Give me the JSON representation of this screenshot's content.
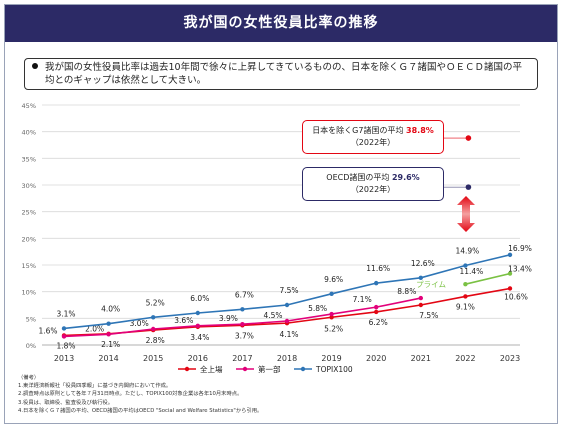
{
  "header": {
    "title": "我が国の女性役員比率の推移"
  },
  "summary": {
    "text": "我が国の女性役員比率は過去10年間で徐々に上昇してきているものの、日本を除くＧ７諸国やＯＥＣＤ諸国の平均とのギャップは依然として大きい。"
  },
  "callouts": {
    "g7_label": "日本を除くG7諸国の平均",
    "g7_value": "38.8%",
    "g7_year": "（2022年）",
    "oecd_label": "OECD諸国の平均",
    "oecd_value": "29.6%",
    "oecd_year": "（2022年）"
  },
  "colors": {
    "header_bg": "#2c2a66",
    "zenjojo": "#e30613",
    "daiichibu": "#e2007a",
    "topix100": "#2e75b6",
    "prime": "#7ac143",
    "g7": "#e30613",
    "oecd": "#2c2a66"
  },
  "notes": [
    "（備考）",
    "1.東洋経済新報社「役員四季報」に基づき内閣府において作成。",
    "2.調査時点は原則として各年７月31日時点。ただし、TOPIX100対象企業は各年10月末時点。",
    "3.役員は、取締役、監査役及び執行役。",
    "4.日本を除くＧ７諸国の平均、OECD諸国の平均はOECD \"Social and Welfare Statistics\"から引用。"
  ],
  "chart_data": {
    "type": "line",
    "title": "",
    "xlabel": "",
    "ylabel": "",
    "x": [
      "2013",
      "2014",
      "2015",
      "2016",
      "2017",
      "2018",
      "2019",
      "2020",
      "2021",
      "2022",
      "2023"
    ],
    "yticks": [
      "0%",
      "5%",
      "10%",
      "15%",
      "20%",
      "25%",
      "30%",
      "35%",
      "40%",
      "45%"
    ],
    "ylim": [
      0,
      45
    ],
    "grid": true,
    "legend": [
      "全上場",
      "第一部",
      "TOPIX100"
    ],
    "series": [
      {
        "name": "全上場",
        "color": "#e30613",
        "values": [
          1.8,
          2.1,
          2.8,
          3.4,
          3.7,
          4.1,
          5.2,
          6.2,
          7.5,
          9.1,
          10.6
        ],
        "labels": [
          "1.8%",
          "2.1%",
          "2.8%",
          "3.4%",
          "3.7%",
          "4.1%",
          "5.2%",
          "6.2%",
          "7.5%",
          "9.1%",
          "10.6%"
        ]
      },
      {
        "name": "第一部",
        "color": "#e2007a",
        "values": [
          1.6,
          2.0,
          3.0,
          3.6,
          3.9,
          4.5,
          5.8,
          7.1,
          8.8,
          null,
          null
        ],
        "labels": [
          "1.6%",
          "2.0%",
          "3.0%",
          "3.6%",
          "3.9%",
          "4.5%",
          "5.8%",
          "7.1%",
          "8.8%",
          "",
          ""
        ]
      },
      {
        "name": "TOPIX100",
        "color": "#2e75b6",
        "values": [
          3.1,
          4.0,
          5.2,
          6.0,
          6.7,
          7.5,
          9.6,
          11.6,
          12.6,
          14.9,
          16.9
        ],
        "labels": [
          "3.1%",
          "4.0%",
          "5.2%",
          "6.0%",
          "6.7%",
          "7.5%",
          "9.6%",
          "11.6%",
          "12.6%",
          "14.9%",
          "16.9%"
        ]
      },
      {
        "name": "プライム",
        "color": "#7ac143",
        "values": [
          null,
          null,
          null,
          null,
          null,
          null,
          null,
          null,
          null,
          11.4,
          13.4
        ],
        "labels": [
          "",
          "",
          "",
          "",
          "",
          "",
          "",
          "",
          "",
          "11.4%",
          "13.4%"
        ]
      }
    ],
    "reference_points": [
      {
        "name": "日本を除くG7諸国の平均",
        "value": 38.8,
        "year": "2022",
        "color": "#e30613"
      },
      {
        "name": "OECD諸国の平均",
        "value": 29.6,
        "year": "2022",
        "color": "#2c2a66"
      }
    ]
  }
}
